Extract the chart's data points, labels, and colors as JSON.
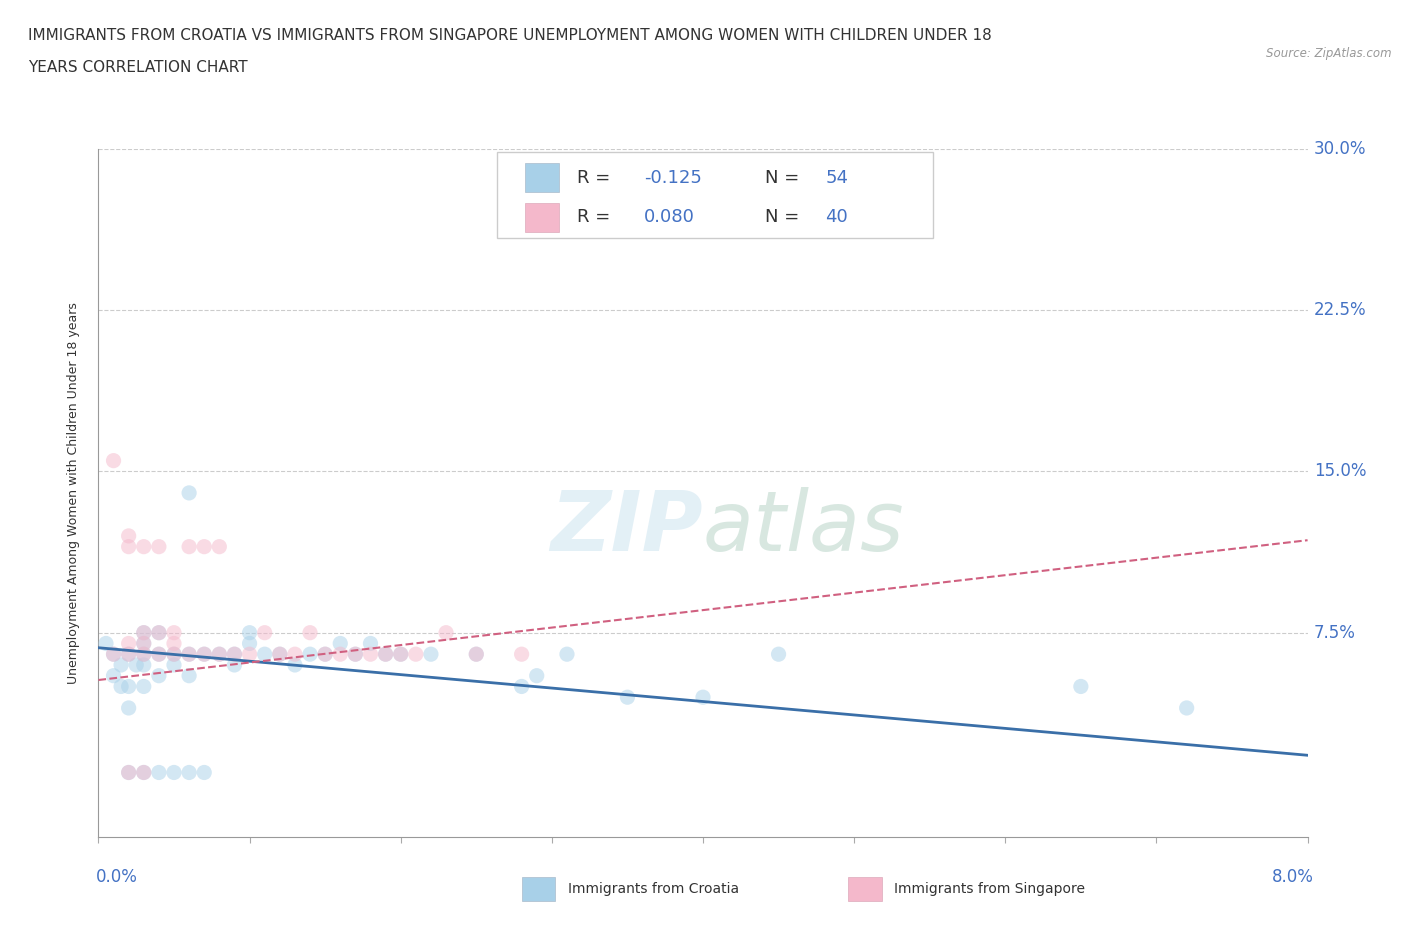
{
  "title_line1": "IMMIGRANTS FROM CROATIA VS IMMIGRANTS FROM SINGAPORE UNEMPLOYMENT AMONG WOMEN WITH CHILDREN UNDER 18",
  "title_line2": "YEARS CORRELATION CHART",
  "source": "Source: ZipAtlas.com",
  "ylabel": "Unemployment Among Women with Children Under 18 years",
  "x_min": 0.0,
  "x_max": 0.08,
  "y_min": -0.02,
  "y_max": 0.3,
  "y_axis_min": 0.0,
  "y_axis_max": 0.3,
  "y_ticks": [
    0.075,
    0.15,
    0.225,
    0.3
  ],
  "y_tick_labels": [
    "7.5%",
    "15.0%",
    "22.5%",
    "30.0%"
  ],
  "watermark": "ZIPatlas",
  "color_croatia": "#a8d0e8",
  "color_singapore": "#f4b8cb",
  "color_trend_croatia": "#3a6fa8",
  "color_trend_singapore": "#d06080",
  "color_text_blue": "#4472c4",
  "background_color": "#ffffff",
  "croatia_x": [
    0.0005,
    0.001,
    0.0015,
    0.001,
    0.0015,
    0.002,
    0.002,
    0.002,
    0.0025,
    0.003,
    0.003,
    0.003,
    0.003,
    0.003,
    0.004,
    0.004,
    0.004,
    0.005,
    0.005,
    0.006,
    0.006,
    0.006,
    0.007,
    0.008,
    0.009,
    0.009,
    0.01,
    0.01,
    0.011,
    0.012,
    0.013,
    0.014,
    0.015,
    0.016,
    0.017,
    0.018,
    0.019,
    0.02,
    0.022,
    0.025,
    0.028,
    0.029,
    0.031,
    0.035,
    0.04,
    0.045,
    0.065,
    0.072,
    0.002,
    0.003,
    0.004,
    0.005,
    0.006,
    0.007
  ],
  "croatia_y": [
    0.07,
    0.065,
    0.05,
    0.055,
    0.06,
    0.065,
    0.05,
    0.04,
    0.06,
    0.06,
    0.065,
    0.07,
    0.075,
    0.05,
    0.065,
    0.055,
    0.075,
    0.065,
    0.06,
    0.055,
    0.065,
    0.14,
    0.065,
    0.065,
    0.06,
    0.065,
    0.07,
    0.075,
    0.065,
    0.065,
    0.06,
    0.065,
    0.065,
    0.07,
    0.065,
    0.07,
    0.065,
    0.065,
    0.065,
    0.065,
    0.05,
    0.055,
    0.065,
    0.045,
    0.045,
    0.065,
    0.05,
    0.04,
    0.01,
    0.01,
    0.01,
    0.01,
    0.01,
    0.01
  ],
  "singapore_x": [
    0.001,
    0.001,
    0.002,
    0.002,
    0.002,
    0.002,
    0.003,
    0.003,
    0.003,
    0.003,
    0.004,
    0.004,
    0.004,
    0.005,
    0.005,
    0.005,
    0.006,
    0.006,
    0.007,
    0.007,
    0.008,
    0.008,
    0.009,
    0.01,
    0.011,
    0.012,
    0.013,
    0.014,
    0.015,
    0.016,
    0.017,
    0.018,
    0.019,
    0.02,
    0.021,
    0.023,
    0.025,
    0.028,
    0.002,
    0.003
  ],
  "singapore_y": [
    0.155,
    0.065,
    0.065,
    0.07,
    0.115,
    0.12,
    0.065,
    0.07,
    0.075,
    0.115,
    0.065,
    0.075,
    0.115,
    0.065,
    0.07,
    0.075,
    0.065,
    0.115,
    0.065,
    0.115,
    0.065,
    0.115,
    0.065,
    0.065,
    0.075,
    0.065,
    0.065,
    0.075,
    0.065,
    0.065,
    0.065,
    0.065,
    0.065,
    0.065,
    0.065,
    0.075,
    0.065,
    0.065,
    0.01,
    0.01
  ],
  "croatia_r": -0.125,
  "singapore_r": 0.08,
  "croatia_n": 54,
  "singapore_n": 40,
  "title_fontsize": 11,
  "label_fontsize": 9,
  "tick_fontsize": 12,
  "legend_fontsize": 13,
  "marker_size": 120,
  "marker_alpha": 0.5
}
